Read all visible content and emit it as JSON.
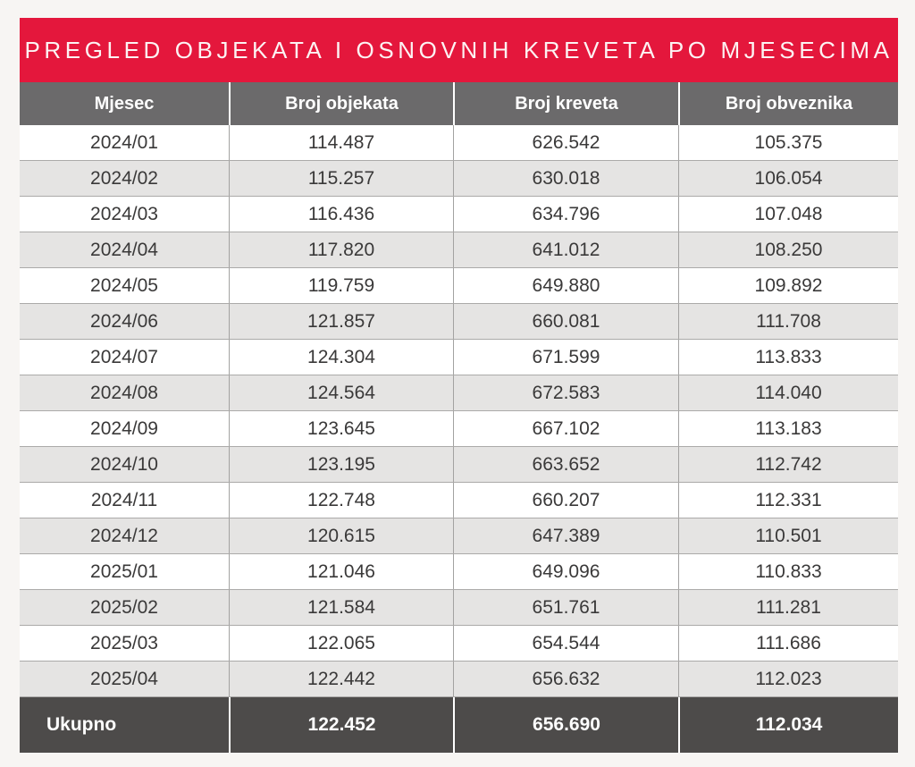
{
  "chart_data": {
    "type": "table",
    "title": "PREGLED OBJEKATA I OSNOVNIH KREVETA PO MJESECIMA",
    "columns": [
      "Mjesec",
      "Broj objekata",
      "Broj kreveta",
      "Broj obveznika"
    ],
    "rows": [
      [
        "2024/01",
        "114.487",
        "626.542",
        "105.375"
      ],
      [
        "2024/02",
        "115.257",
        "630.018",
        "106.054"
      ],
      [
        "2024/03",
        "116.436",
        "634.796",
        "107.048"
      ],
      [
        "2024/04",
        "117.820",
        "641.012",
        "108.250"
      ],
      [
        "2024/05",
        "119.759",
        "649.880",
        "109.892"
      ],
      [
        "2024/06",
        "121.857",
        "660.081",
        "111.708"
      ],
      [
        "2024/07",
        "124.304",
        "671.599",
        "113.833"
      ],
      [
        "2024/08",
        "124.564",
        "672.583",
        "114.040"
      ],
      [
        "2024/09",
        "123.645",
        "667.102",
        "113.183"
      ],
      [
        "2024/10",
        "123.195",
        "663.652",
        "112.742"
      ],
      [
        "2024/11",
        "122.748",
        "660.207",
        "112.331"
      ],
      [
        "2024/12",
        "120.615",
        "647.389",
        "110.501"
      ],
      [
        "2025/01",
        "121.046",
        "649.096",
        "110.833"
      ],
      [
        "2025/02",
        "121.584",
        "651.761",
        "111.281"
      ],
      [
        "2025/03",
        "122.065",
        "654.544",
        "111.686"
      ],
      [
        "2025/04",
        "122.442",
        "656.632",
        "112.023"
      ]
    ],
    "footer_row": [
      "Ukupno",
      "122.452",
      "656.690",
      "112.034"
    ],
    "layout_hints": {
      "striped_rows": true,
      "first_data_row_background": "white",
      "footer_label_alignment": "left",
      "cell_alignment": "center"
    }
  },
  "colors": {
    "accent_red": "#E4173C",
    "header_gray": "#6B6A6B",
    "footer_gray": "#4D4B4A",
    "row_alt_gray": "#E5E4E3",
    "row_white": "#FFFFFF",
    "body_text": "#3A3939",
    "page_background": "#F7F5F3"
  }
}
